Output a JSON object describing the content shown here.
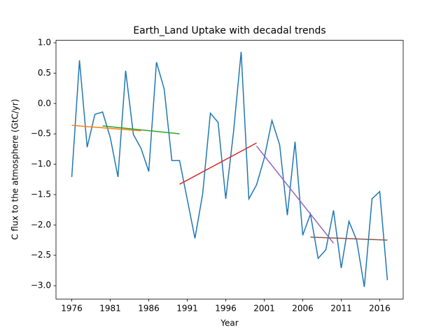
{
  "chart_data": {
    "type": "line",
    "title": "Earth_Land Uptake with decadal trends",
    "xlabel": "Year",
    "ylabel": "C flux to the atmosphere (GtC/yr)",
    "xlim": [
      1973.95,
      2019.05
    ],
    "ylim": [
      -3.22,
      1.04
    ],
    "xticks": [
      1976,
      1981,
      1986,
      1991,
      1996,
      2001,
      2006,
      2011,
      2016
    ],
    "yticks": [
      {
        "value": 1.0,
        "label": "1.0"
      },
      0.5,
      {
        "value": 0.0,
        "label": "0.0"
      },
      {
        "value": -0.5,
        "label": "−0.5"
      },
      {
        "value": -1.0,
        "label": "−1.0"
      },
      {
        "value": -1.5,
        "label": "−1.5"
      },
      {
        "value": -2.0,
        "label": "−2.0"
      },
      {
        "value": -2.5,
        "label": "−2.5"
      },
      {
        "value": -3.0,
        "label": "−3.0"
      }
    ],
    "series": [
      {
        "color": "#1f77b4",
        "x": [
          1976,
          1977,
          1978,
          1979,
          1980,
          1981,
          1982,
          1983,
          1984,
          1985,
          1986,
          1987,
          1988,
          1989,
          1990,
          1991,
          1992,
          1993,
          1994,
          1995,
          1996,
          1997,
          1998,
          1999,
          2000,
          2001,
          2002,
          2003,
          2004,
          2005,
          2006,
          2007,
          2008,
          2009,
          2010,
          2011,
          2012,
          2013,
          2014,
          2015,
          2016,
          2017
        ],
        "values": [
          -1.21,
          0.71,
          -0.72,
          -0.18,
          -0.14,
          -0.56,
          -1.21,
          0.54,
          -0.51,
          -0.74,
          -1.12,
          0.68,
          0.24,
          -0.94,
          -0.94,
          -1.58,
          -2.22,
          -1.49,
          -0.16,
          -0.31,
          -1.57,
          -0.48,
          0.85,
          -1.57,
          -1.34,
          -0.9,
          -0.28,
          -0.68,
          -1.84,
          -0.63,
          -2.17,
          -1.82,
          -2.55,
          -2.41,
          -1.76,
          -2.71,
          -1.94,
          -2.25,
          -3.02,
          -1.57,
          -1.45,
          -2.91
        ]
      },
      {
        "color": "#ff7f0e",
        "x": [
          1976,
          1985
        ],
        "values": [
          -0.36,
          -0.45
        ]
      },
      {
        "color": "#2ca02c",
        "x": [
          1980,
          1990
        ],
        "values": [
          -0.37,
          -0.5
        ]
      },
      {
        "color": "#d62728",
        "x": [
          1990,
          2000
        ],
        "values": [
          -1.33,
          -0.65
        ]
      },
      {
        "color": "#9467bd",
        "x": [
          2000,
          2010
        ],
        "values": [
          -0.7,
          -2.3
        ]
      },
      {
        "color": "#8c564b",
        "x": [
          2007,
          2017
        ],
        "values": [
          -2.2,
          -2.25
        ]
      }
    ]
  }
}
